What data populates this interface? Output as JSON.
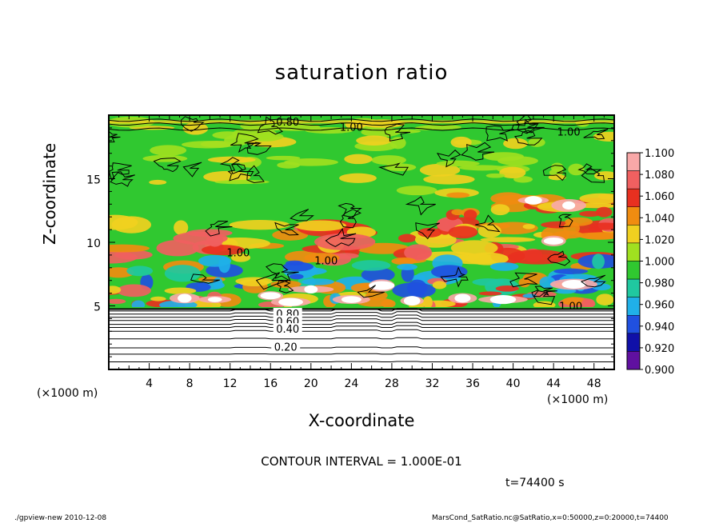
{
  "chart_data": {
    "type": "heatmap",
    "title": "saturation ratio",
    "xlabel": "X-coordinate",
    "ylabel": "Z-coordinate",
    "x_unit": "(×1000 m)",
    "z_unit": "(×1000 m)",
    "xlim": [
      0,
      50
    ],
    "zlim": [
      0,
      20
    ],
    "x_ticks": [
      4,
      8,
      12,
      16,
      20,
      24,
      28,
      32,
      36,
      40,
      44,
      48
    ],
    "z_ticks": [
      5,
      10,
      15
    ],
    "colorbar": {
      "levels": [
        "1.100",
        "1.080",
        "1.060",
        "1.040",
        "1.020",
        "1.000",
        "0.980",
        "0.960",
        "0.940",
        "0.920",
        "0.900"
      ],
      "colors": [
        "#f8a8a8",
        "#f06060",
        "#e83020",
        "#f08c10",
        "#f0d020",
        "#a0e020",
        "#30c830",
        "#20c8a0",
        "#20b0e8",
        "#2050e0",
        "#1010a8",
        "#6010a0"
      ]
    },
    "contour_labels": [
      "0.80",
      "1.00",
      "1.00",
      "1.00",
      "1.00",
      "1.00",
      "0.80",
      "0.60",
      "0.40",
      "0.20"
    ],
    "contour_interval": "CONTOUR INTERVAL = 1.000E-01",
    "time": "t=74400 s"
  },
  "footer": {
    "left": "./gpview-new  2010-12-08",
    "right": "MarsCond_SatRatio.nc@SatRatio,x=0:50000,z=0:20000,t=74400"
  },
  "colors": {
    "background": "#ffffff",
    "saturated_fill": "#30c830",
    "subsaturated_fill": "#ffffff"
  }
}
